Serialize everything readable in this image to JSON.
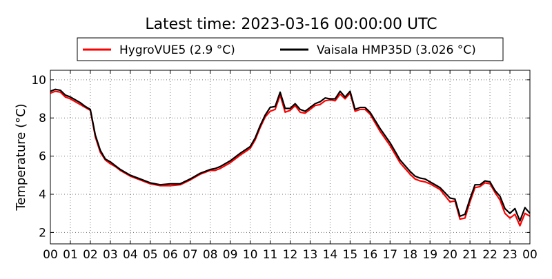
{
  "chart_data": {
    "type": "line",
    "title": "Latest time: 2023-03-16 00:00:00 UTC",
    "xlabel": "",
    "ylabel": "Temperature (°C)",
    "xlim": [
      0,
      24
    ],
    "ylim": [
      1.4,
      10.5
    ],
    "x_ticks": [
      0,
      1,
      2,
      3,
      4,
      5,
      6,
      7,
      8,
      9,
      10,
      11,
      12,
      13,
      14,
      15,
      16,
      17,
      18,
      19,
      20,
      21,
      22,
      23,
      24
    ],
    "x_tick_labels": [
      "00",
      "01",
      "02",
      "03",
      "04",
      "05",
      "06",
      "07",
      "08",
      "09",
      "10",
      "11",
      "12",
      "13",
      "14",
      "15",
      "16",
      "17",
      "18",
      "19",
      "20",
      "21",
      "22",
      "23",
      "00"
    ],
    "y_ticks": [
      2,
      4,
      6,
      8,
      10
    ],
    "y_tick_labels": [
      "2",
      "4",
      "6",
      "8",
      "10"
    ],
    "grid": true,
    "legend_placement": "top-center",
    "x": [
      0,
      0.25,
      0.5,
      0.75,
      1,
      1.25,
      1.5,
      1.75,
      2,
      2.25,
      2.5,
      2.75,
      3,
      3.25,
      3.5,
      3.75,
      4,
      4.5,
      5,
      5.5,
      6,
      6.5,
      7,
      7.5,
      8,
      8.25,
      8.5,
      9,
      9.5,
      10,
      10.25,
      10.5,
      10.75,
      11,
      11.25,
      11.5,
      11.75,
      12,
      12.25,
      12.5,
      12.75,
      13,
      13.25,
      13.5,
      13.75,
      14,
      14.25,
      14.5,
      14.75,
      15,
      15.25,
      15.5,
      15.75,
      16,
      16.5,
      17,
      17.5,
      18,
      18.25,
      18.5,
      18.75,
      19,
      19.5,
      20,
      20.25,
      20.5,
      20.75,
      21,
      21.25,
      21.5,
      21.75,
      22,
      22.25,
      22.5,
      22.75,
      23,
      23.25,
      23.5,
      23.75,
      24
    ],
    "series": [
      {
        "name": "HygroVUE5 (2.9 °C)",
        "color": "#ff0000",
        "values": [
          9.3,
          9.4,
          9.35,
          9.1,
          9.0,
          8.85,
          8.7,
          8.55,
          8.4,
          7.0,
          6.2,
          5.8,
          5.6,
          5.45,
          5.25,
          5.1,
          4.95,
          4.75,
          4.55,
          4.45,
          4.45,
          4.5,
          4.75,
          5.05,
          5.25,
          5.25,
          5.35,
          5.65,
          6.05,
          6.4,
          6.85,
          7.5,
          8.05,
          8.35,
          8.45,
          9.2,
          8.3,
          8.4,
          8.65,
          8.3,
          8.25,
          8.45,
          8.65,
          8.7,
          8.9,
          8.95,
          8.9,
          9.25,
          9.0,
          9.3,
          8.35,
          8.45,
          8.45,
          8.2,
          7.3,
          6.55,
          5.65,
          5.05,
          4.8,
          4.7,
          4.65,
          4.55,
          4.25,
          3.6,
          3.65,
          2.7,
          2.75,
          3.6,
          4.35,
          4.4,
          4.6,
          4.55,
          4.1,
          3.7,
          3.0,
          2.75,
          2.95,
          2.35,
          3.0,
          2.85
        ]
      },
      {
        "name": "Vaisala HMP35D (3.026 °C)",
        "color": "#000000",
        "values": [
          9.4,
          9.5,
          9.45,
          9.2,
          9.1,
          8.95,
          8.8,
          8.6,
          8.45,
          7.1,
          6.3,
          5.85,
          5.7,
          5.5,
          5.3,
          5.15,
          5.0,
          4.8,
          4.6,
          4.5,
          4.55,
          4.55,
          4.8,
          5.1,
          5.3,
          5.35,
          5.45,
          5.75,
          6.15,
          6.5,
          6.95,
          7.6,
          8.15,
          8.55,
          8.6,
          9.35,
          8.5,
          8.5,
          8.75,
          8.45,
          8.35,
          8.55,
          8.75,
          8.85,
          9.05,
          9.0,
          9.0,
          9.4,
          9.1,
          9.4,
          8.45,
          8.55,
          8.55,
          8.3,
          7.45,
          6.7,
          5.8,
          5.2,
          4.95,
          4.85,
          4.8,
          4.65,
          4.35,
          3.8,
          3.75,
          2.85,
          2.95,
          3.75,
          4.5,
          4.5,
          4.7,
          4.65,
          4.2,
          3.9,
          3.25,
          3.0,
          3.25,
          2.6,
          3.3,
          3.0
        ]
      }
    ]
  }
}
